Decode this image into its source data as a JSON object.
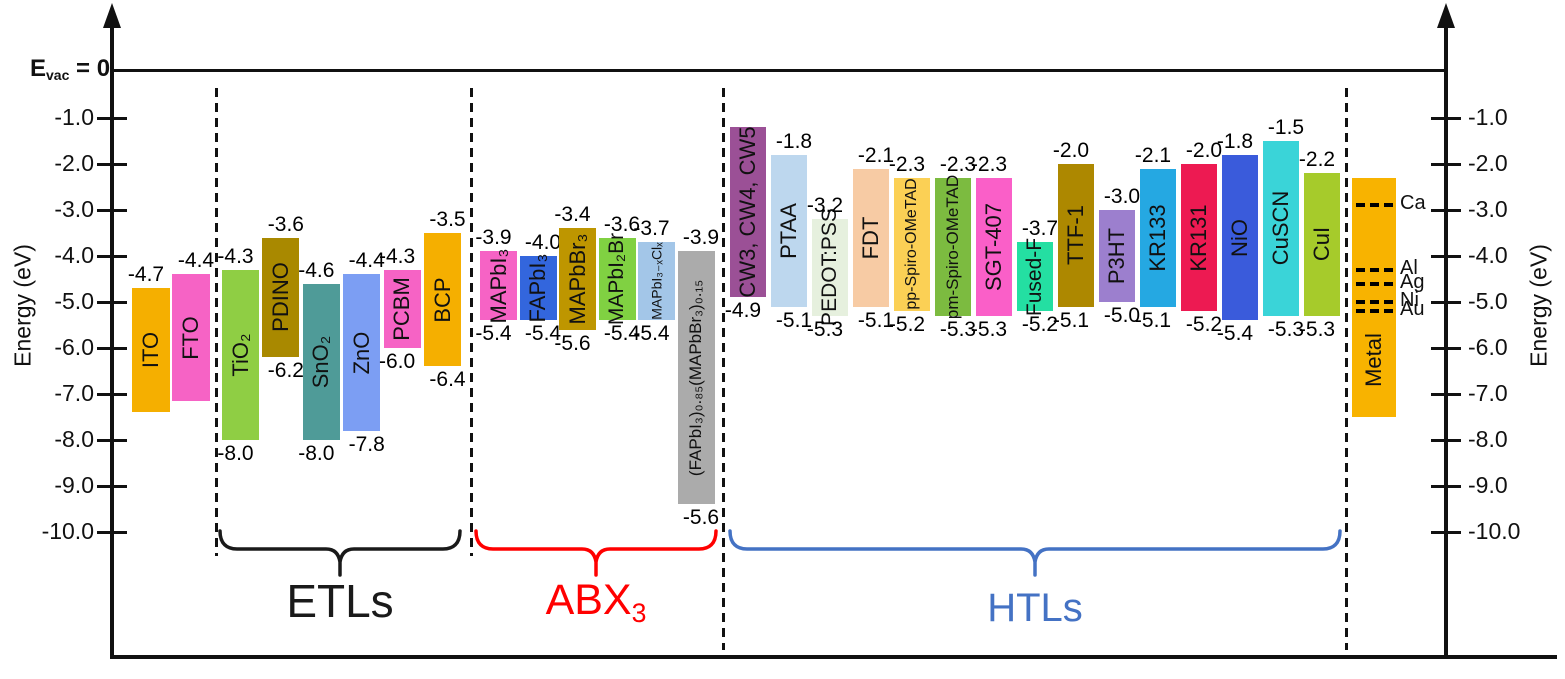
{
  "figure": {
    "evac": {
      "prefix": "E",
      "sub": "vac",
      "suffix": " = 0"
    },
    "axes": {
      "left_label": "Energy (eV)",
      "right_label": "Energy (eV)",
      "ticks": [
        "-1.0",
        "-2.0",
        "-3.0",
        "-4.0",
        "-5.0",
        "-6.0",
        "-7.0",
        "-8.0",
        "-9.0",
        "-10.0"
      ]
    },
    "groups": [
      {
        "label": "ETLs",
        "sub": "",
        "color": "#1a1a1a"
      },
      {
        "label": "ABX",
        "sub": "3",
        "color": "#ff0000"
      },
      {
        "label": "HTLs",
        "sub": "",
        "color": "#4472c4"
      }
    ]
  },
  "chart_data": {
    "type": "bar",
    "subtype": "energy-level-diagram",
    "unit": "eV",
    "ylabel": "Energy (eV)",
    "ylim": [
      0,
      -10.5
    ],
    "evac_reference": "E_vac = 0",
    "bars": [
      {
        "label": "ITO",
        "region": "electrodes",
        "top": -4.7,
        "bottom": null,
        "draw_bottom": -7.4,
        "color": "#F5AF00"
      },
      {
        "label": "FTO",
        "region": "electrodes",
        "top": -4.4,
        "bottom": null,
        "draw_bottom": -7.15,
        "color": "#F663C5"
      },
      {
        "label": "TiO₂",
        "region": "etl",
        "top": -4.3,
        "bottom": -8.0,
        "color": "#8FCE44"
      },
      {
        "label": "PDINO",
        "region": "etl",
        "top": -3.6,
        "bottom": -6.2,
        "color": "#A98900"
      },
      {
        "label": "SnO₂",
        "region": "etl",
        "top": -4.6,
        "bottom": -8.0,
        "color": "#4F9B98"
      },
      {
        "label": "ZnO",
        "region": "etl",
        "top": -4.4,
        "bottom": -7.8,
        "color": "#7C9EF3"
      },
      {
        "label": "PCBM",
        "region": "etl",
        "top": -4.3,
        "bottom": -6.0,
        "color": "#F663C5"
      },
      {
        "label": "BCP",
        "region": "etl",
        "top": -3.5,
        "bottom": -6.4,
        "color": "#F5AF00"
      },
      {
        "label": "MAPbI₃",
        "region": "abx",
        "top": -3.9,
        "bottom": -5.4,
        "color": "#F663C5"
      },
      {
        "label": "FAPbI₃",
        "region": "abx",
        "top": -4.0,
        "bottom": -5.4,
        "color": "#3366DD"
      },
      {
        "label": "MAPbBr₃",
        "region": "abx",
        "top": -3.4,
        "bottom": -5.6,
        "color": "#BE9600"
      },
      {
        "label": "MAPbI₂Br",
        "region": "abx",
        "top": -3.6,
        "bottom": -5.4,
        "color": "#80D142"
      },
      {
        "label": "MAPbI₃₋ₓClₓ",
        "region": "abx",
        "top": -3.7,
        "bottom": -5.4,
        "color": "#A3C6E8"
      },
      {
        "label": "(FAPbI₃)₀.₈₅(MAPbBr₃)₀.₁₅",
        "region": "abx",
        "top": -3.9,
        "bottom": -5.6,
        "draw_bottom": -9.4,
        "color": "#ABABAB"
      },
      {
        "label": "CW3, CW4, CW5",
        "region": "htl",
        "top": null,
        "bottom": -4.9,
        "draw_top": -1.2,
        "color": "#9B5096"
      },
      {
        "label": "PTAA",
        "region": "htl",
        "top": -1.8,
        "bottom": -5.1,
        "color": "#BDD7EE"
      },
      {
        "label": "PEDOT:PSS",
        "region": "htl",
        "top": -3.2,
        "bottom": -5.3,
        "color": "#E6F0DE"
      },
      {
        "label": "FDT",
        "region": "htl",
        "top": -2.1,
        "bottom": -5.1,
        "color": "#F7CBA4"
      },
      {
        "label": "pp-Spiro-OMeTAD",
        "region": "htl",
        "top": -2.3,
        "bottom": -5.2,
        "color": "#FBD055"
      },
      {
        "label": "pm-Spiro-OMeTAD",
        "region": "htl",
        "top": -2.3,
        "bottom": -5.3,
        "color": "#7CBB40"
      },
      {
        "label": "SGT-407",
        "region": "htl",
        "top": -2.3,
        "bottom": -5.3,
        "color": "#FA5FC8"
      },
      {
        "label": "Fused-F",
        "region": "htl",
        "top": -3.7,
        "bottom": -5.2,
        "color": "#24DFA2"
      },
      {
        "label": "TTF-1",
        "region": "htl",
        "top": -2.0,
        "bottom": -5.1,
        "color": "#AD8800"
      },
      {
        "label": "P3HT",
        "region": "htl",
        "top": -3.0,
        "bottom": -5.0,
        "color": "#9C7FCE"
      },
      {
        "label": "KR133",
        "region": "htl",
        "top": -2.1,
        "bottom": -5.1,
        "color": "#25A8E2"
      },
      {
        "label": "KR131",
        "region": "htl",
        "top": -2.0,
        "bottom": -5.2,
        "color": "#ED1A52"
      },
      {
        "label": "NiO",
        "region": "htl",
        "top": -1.8,
        "bottom": -5.4,
        "color": "#3A5BDB"
      },
      {
        "label": "CuSCN",
        "region": "htl",
        "top": -1.5,
        "bottom": -5.3,
        "color": "#3AD4D8"
      },
      {
        "label": "CuI",
        "region": "htl",
        "top": -2.2,
        "bottom": -5.3,
        "color": "#A6CB2B"
      },
      {
        "label": "Metal",
        "region": "metal",
        "top": null,
        "bottom": null,
        "draw_top": -2.3,
        "draw_bottom": -7.5,
        "color": "#F8B300"
      }
    ],
    "metal_work_functions": [
      {
        "label": "Ca",
        "value": -2.9
      },
      {
        "label": "Al",
        "value": -4.3
      },
      {
        "label": "Ag",
        "value": -4.6
      },
      {
        "label": "Ni",
        "value": -5.0
      },
      {
        "label": "Au",
        "value": -5.2
      }
    ]
  }
}
